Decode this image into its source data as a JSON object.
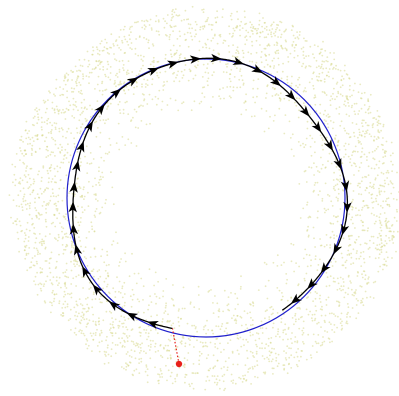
{
  "colors": {
    "background": "#ffffff",
    "cloud": "#d7d98e",
    "reference_circle": "#1f1fcc",
    "trajectory": "#000000",
    "arrowhead": "#000000",
    "start_marker": "#e8201a",
    "start_link": "#e8201a"
  },
  "trajectory": {
    "direction": "clockwise",
    "arrowhead_count": 34
  },
  "start_point": {
    "marker": "filled-dot",
    "link": "dotted"
  }
}
